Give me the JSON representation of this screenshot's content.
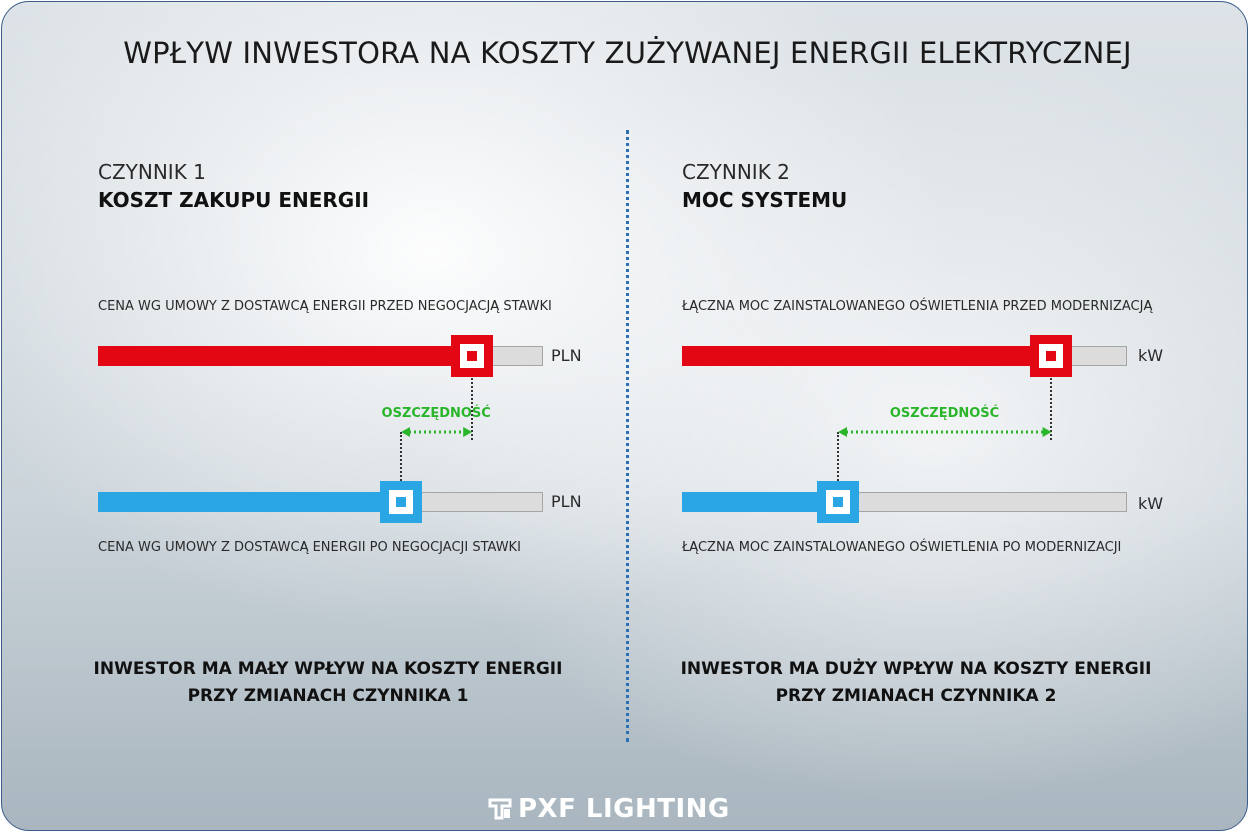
{
  "title": "WPŁYW INWESTORA NA KOSZTY ZUŻYWANEJ ENERGII ELEKTRYCZNEJ",
  "colors": {
    "before": "#e30613",
    "after": "#29a6e3",
    "savings": "#2bb52b",
    "divider": "#2b6fb5"
  },
  "factors": [
    {
      "number": "CZYNNIK 1",
      "name": "KOSZT ZAKUPU ENERGII",
      "before_caption": "CENA WG UMOWY Z DOSTAWCĄ ENERGII PRZED NEGOCJACJĄ STAWKI",
      "after_caption": "CENA WG UMOWY Z DOSTAWCĄ ENERGII PO NEGOCJACJI STAWKI",
      "before_level": 0.84,
      "after_level": 0.68,
      "unit": "PLN",
      "savings_label": "OSZCZĘDNOŚĆ",
      "conclusion": [
        "INWESTOR MA MAŁY WPŁYW NA KOSZTY ENERGII",
        "PRZY ZMIANACH CZYNNIKA 1"
      ]
    },
    {
      "number": "CZYNNIK 2",
      "name": "MOC SYSTEMU",
      "before_caption": "ŁĄCZNA MOC ZAINSTALOWANEGO OŚWIETLENIA PRZED MODERNIZACJĄ",
      "after_caption": "ŁĄCZNA MOC ZAINSTALOWANEGO OŚWIETLENIA PO MODERNIZACJI",
      "before_level": 0.83,
      "after_level": 0.35,
      "unit": "kW",
      "savings_label": "OSZCZĘDNOŚĆ",
      "conclusion": [
        "INWESTOR MA DUŻY WPŁYW NA KOSZTY ENERGII",
        "PRZY ZMIANACH CZYNNIKA 2"
      ]
    }
  ],
  "logo": {
    "text": "PXF LIGHTING",
    "icon": "pxf-logo-icon"
  }
}
